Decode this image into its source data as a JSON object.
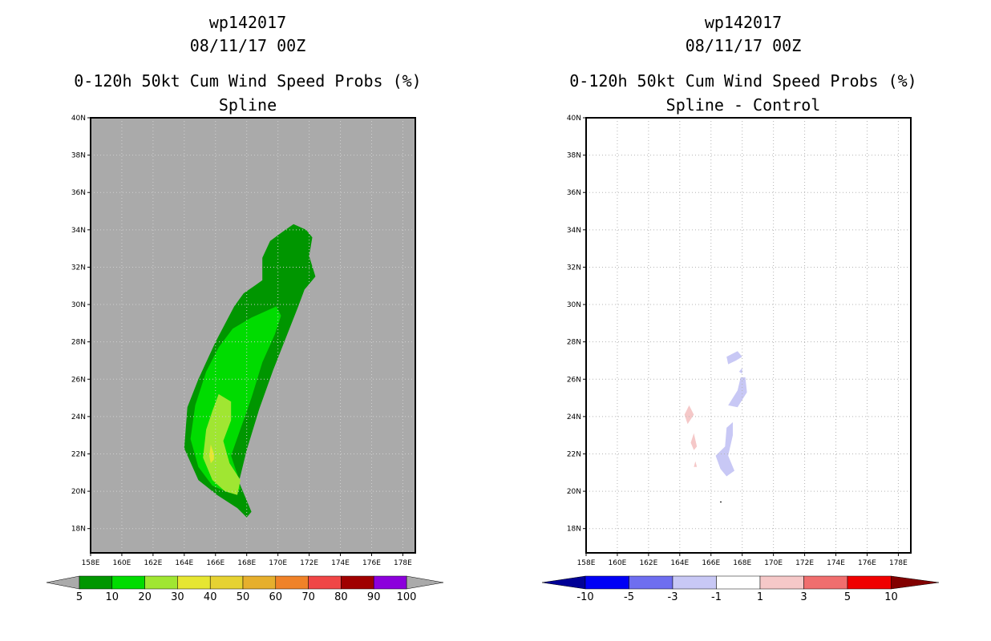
{
  "panels": [
    {
      "storm_id": "wp142017",
      "datetime": "08/11/17 00Z",
      "product": "0-120h 50kt Cum Wind Speed Probs (%)",
      "subtitle": "Spline",
      "background_color": "#aaaaaa"
    },
    {
      "storm_id": "wp142017",
      "datetime": "08/11/17 00Z",
      "product": "0-120h 50kt Cum Wind Speed Probs (%)",
      "subtitle": "Spline - Control",
      "background_color": "#ffffff"
    }
  ],
  "chart_data": [
    {
      "type": "contour-map",
      "title": "0-120h 50kt Cum Wind Speed Probs (%)",
      "subtitle": "Spline",
      "x_ticks": [
        "158E",
        "160E",
        "162E",
        "164E",
        "166E",
        "168E",
        "170E",
        "172E",
        "174E",
        "176E",
        "178E"
      ],
      "y_ticks": [
        "40N",
        "38N",
        "36N",
        "34N",
        "32N",
        "30N",
        "28N",
        "26N",
        "24N",
        "22N",
        "20N",
        "18N"
      ],
      "xlim": [
        158,
        178.8
      ],
      "ylim": [
        16.7,
        40
      ],
      "colorbar": {
        "labels": [
          "5",
          "10",
          "20",
          "30",
          "40",
          "50",
          "60",
          "70",
          "80",
          "90",
          "100"
        ],
        "colors": [
          "#009600",
          "#00dc00",
          "#a0e632",
          "#e6e632",
          "#e6d232",
          "#e6af2d",
          "#f08228",
          "#f04646",
          "#a00000",
          "#8c00dc"
        ],
        "under_color": "#aaaaaa",
        "over_color": "#aaaaaa"
      },
      "contours": [
        {
          "level": "5-10",
          "color": "#009600",
          "lonlat": [
            [
              171.0,
              34.3
            ],
            [
              171.8,
              34.0
            ],
            [
              172.2,
              33.6
            ],
            [
              172.0,
              32.6
            ],
            [
              172.4,
              31.5
            ],
            [
              171.7,
              30.8
            ],
            [
              171.3,
              29.9
            ],
            [
              170.6,
              28.4
            ],
            [
              169.7,
              26.5
            ],
            [
              168.8,
              24.4
            ],
            [
              168.0,
              22.2
            ],
            [
              167.5,
              20.5
            ],
            [
              168.3,
              18.9
            ],
            [
              168.0,
              18.6
            ],
            [
              167.4,
              19.1
            ],
            [
              166.1,
              19.8
            ],
            [
              164.9,
              20.6
            ],
            [
              164.0,
              22.3
            ],
            [
              164.2,
              24.5
            ],
            [
              164.9,
              26.0
            ],
            [
              166.0,
              28.0
            ],
            [
              167.2,
              29.9
            ],
            [
              167.8,
              30.6
            ],
            [
              168.5,
              31.0
            ],
            [
              169.0,
              31.3
            ],
            [
              169.0,
              32.5
            ],
            [
              169.5,
              33.4
            ],
            [
              170.3,
              33.9
            ]
          ]
        },
        {
          "level": "10-20",
          "color": "#00dc00",
          "lonlat": [
            [
              169.9,
              29.9
            ],
            [
              170.2,
              29.4
            ],
            [
              169.8,
              28.4
            ],
            [
              169.0,
              26.9
            ],
            [
              168.3,
              25.0
            ],
            [
              167.5,
              23.1
            ],
            [
              167.0,
              21.9
            ],
            [
              167.4,
              20.9
            ],
            [
              167.6,
              20.1
            ],
            [
              166.9,
              19.9
            ],
            [
              165.8,
              20.3
            ],
            [
              164.9,
              21.3
            ],
            [
              164.4,
              22.8
            ],
            [
              164.7,
              24.6
            ],
            [
              165.4,
              26.4
            ],
            [
              166.2,
              27.7
            ],
            [
              167.1,
              28.7
            ],
            [
              168.3,
              29.3
            ]
          ]
        },
        {
          "level": "20-30",
          "color": "#a0e632",
          "lonlat": [
            [
              166.2,
              25.2
            ],
            [
              167.0,
              24.8
            ],
            [
              167.0,
              23.8
            ],
            [
              166.5,
              22.7
            ],
            [
              166.9,
              21.5
            ],
            [
              167.6,
              20.6
            ],
            [
              167.4,
              19.8
            ],
            [
              166.6,
              20.0
            ],
            [
              165.8,
              20.6
            ],
            [
              165.2,
              21.8
            ],
            [
              165.4,
              23.3
            ],
            [
              165.8,
              24.3
            ]
          ]
        },
        {
          "level": "30-40",
          "color": "#e6e632",
          "lonlat": [
            [
              165.7,
              22.5
            ],
            [
              165.9,
              22.0
            ],
            [
              165.9,
              21.7
            ],
            [
              165.7,
              21.5
            ],
            [
              165.6,
              21.9
            ]
          ]
        }
      ]
    },
    {
      "type": "contour-map",
      "title": "0-120h 50kt Cum Wind Speed Probs (%)",
      "subtitle": "Spline - Control",
      "x_ticks": [
        "158E",
        "160E",
        "162E",
        "164E",
        "166E",
        "168E",
        "170E",
        "172E",
        "174E",
        "176E",
        "178E"
      ],
      "y_ticks": [
        "40N",
        "38N",
        "36N",
        "34N",
        "32N",
        "30N",
        "28N",
        "26N",
        "24N",
        "22N",
        "20N",
        "18N"
      ],
      "xlim": [
        158,
        178.8
      ],
      "ylim": [
        16.7,
        40
      ],
      "grid": true,
      "colorbar": {
        "labels": [
          "-10",
          "-5",
          "-3",
          "-1",
          "1",
          "3",
          "5",
          "10"
        ],
        "colors": [
          "#0000f5",
          "#6e6ef0",
          "#c8c8f5",
          "#ffffff",
          "#f5c8c8",
          "#f06e6e",
          "#f00000"
        ],
        "under_color": "#000096",
        "over_color": "#820000"
      },
      "contours": [
        {
          "level": "-3 to -1",
          "color": "#c8c8f5",
          "lonlat": [
            [
              167.7,
              27.5
            ],
            [
              168.0,
              27.2
            ],
            [
              167.6,
              27.0
            ],
            [
              167.1,
              26.8
            ],
            [
              167.0,
              27.2
            ]
          ]
        },
        {
          "level": "-3 to -1",
          "color": "#c8c8f5",
          "lonlat": [
            [
              168.2,
              26.1
            ],
            [
              168.3,
              25.3
            ],
            [
              167.7,
              24.5
            ],
            [
              167.1,
              24.6
            ],
            [
              167.7,
              25.4
            ],
            [
              167.9,
              26.1
            ]
          ]
        },
        {
          "level": "-3 to -1",
          "color": "#c8c8f5",
          "lonlat": [
            [
              168.0,
              26.6
            ],
            [
              168.0,
              26.3
            ],
            [
              167.8,
              26.4
            ]
          ]
        },
        {
          "level": "-3 to -1",
          "color": "#c8c8f5",
          "lonlat": [
            [
              167.4,
              23.7
            ],
            [
              167.0,
              23.4
            ],
            [
              166.9,
              22.4
            ],
            [
              166.3,
              21.9
            ],
            [
              166.6,
              21.2
            ],
            [
              167.0,
              20.8
            ],
            [
              167.5,
              21.1
            ],
            [
              167.1,
              21.9
            ],
            [
              167.4,
              23.0
            ]
          ]
        },
        {
          "level": "1 to 3",
          "color": "#f5c8c8",
          "lonlat": [
            [
              164.6,
              24.6
            ],
            [
              164.9,
              24.1
            ],
            [
              164.5,
              23.6
            ],
            [
              164.3,
              24.1
            ]
          ]
        },
        {
          "level": "1 to 3",
          "color": "#f5c8c8",
          "lonlat": [
            [
              164.9,
              23.1
            ],
            [
              165.1,
              22.4
            ],
            [
              164.9,
              22.2
            ],
            [
              164.7,
              22.6
            ]
          ]
        },
        {
          "level": "1 to 3",
          "color": "#f5c8c8",
          "lonlat": [
            [
              165.0,
              21.6
            ],
            [
              165.1,
              21.3
            ],
            [
              164.9,
              21.3
            ]
          ]
        }
      ]
    }
  ]
}
